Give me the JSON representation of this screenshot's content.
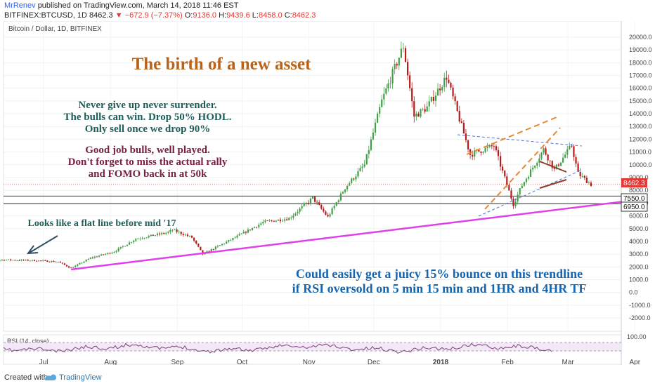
{
  "header": {
    "author": "MrRenev",
    "published": "published on TradingView.com, March 14, 2018 11:46 EST",
    "symbol": "BITFINEX:BTCUSD, 1D",
    "last": "8462.3",
    "change": "−672.9 (−7.37%)",
    "o_label": "O:",
    "o": "9136.0",
    "h_label": "H:",
    "h": "9439.6",
    "l_label": "L:",
    "l": "8458.0",
    "c_label": "C:",
    "c": "8462.3"
  },
  "chart_title": "Bitcoin / Dollar, 1D, BITFINEX",
  "annotations": {
    "headline": "The birth of a new asset",
    "hodl_1": "Never give up never surrender.",
    "hodl_2": "The bulls can win. Drop 50% HODL.",
    "hodl_3": "Only sell once we drop 90%",
    "bulls_1": "Good job bulls, well played.",
    "bulls_2": "Don't forget to miss the actual rally",
    "bulls_3": "and FOMO back in at 50k",
    "flat_line": "Looks like a flat line before mid '17",
    "bounce_1": "Could easily get a juicy 15% bounce on this trendline",
    "bounce_2": "if RSI oversold on 5 min 15 min and 1HR and 4HR TF"
  },
  "rsi_label": "RSI (14, close)",
  "price_badges": {
    "current": "8462.3",
    "level_upper": "7550.0",
    "level_lower": "6950.0"
  },
  "footer": {
    "created_with": "Created with",
    "brand": "TradingView"
  },
  "colors": {
    "headline": "#b8641c",
    "hodl_text": "#1f5f5a",
    "bulls_text": "#7a1f44",
    "flat_text": "#1f5f5a",
    "bounce_text": "#1565b0",
    "trendline": "#e040e8",
    "orange_channel": "#e08a3a",
    "blue_dashed": "#4f72d6",
    "wedge": "#8b3a2a",
    "candle_up": "#43a047",
    "candle_down": "#b71c1c",
    "rsi_line": "#7e3f7e",
    "price_badge": "#e53935"
  },
  "chart_data": {
    "type": "candlestick",
    "x_ticks": [
      "Jul",
      "Aug",
      "Sep",
      "Oct",
      "Nov",
      "Dec",
      "2018",
      "Feb",
      "Mar",
      "Apr"
    ],
    "y_ticks": [
      -2000,
      -1000,
      0,
      1000,
      2000,
      3000,
      4000,
      5000,
      6000,
      7000,
      8000,
      9000,
      10000,
      11000,
      12000,
      13000,
      14000,
      15000,
      16000,
      17000,
      18000,
      19000,
      20000
    ],
    "ylim": [
      -2600,
      20600
    ],
    "rsi_ticks": [
      100
    ],
    "series": [
      {
        "name": "BTCUSD",
        "close_approx": [
          [
            "2017-06-01",
            2450
          ],
          [
            "2017-06-15",
            2550
          ],
          [
            "2017-06-30",
            2500
          ],
          [
            "2017-07-10",
            2400
          ],
          [
            "2017-07-16",
            1900
          ],
          [
            "2017-07-25",
            2700
          ],
          [
            "2017-08-05",
            3200
          ],
          [
            "2017-08-15",
            4200
          ],
          [
            "2017-08-30",
            4700
          ],
          [
            "2017-09-01",
            4900
          ],
          [
            "2017-09-10",
            4300
          ],
          [
            "2017-09-15",
            3000
          ],
          [
            "2017-09-30",
            4300
          ],
          [
            "2017-10-13",
            5500
          ],
          [
            "2017-10-25",
            5800
          ],
          [
            "2017-11-05",
            7400
          ],
          [
            "2017-11-12",
            5900
          ],
          [
            "2017-11-20",
            8200
          ],
          [
            "2017-11-29",
            10000
          ],
          [
            "2017-12-07",
            15000
          ],
          [
            "2017-12-17",
            19300
          ],
          [
            "2017-12-22",
            13800
          ],
          [
            "2017-12-28",
            14500
          ],
          [
            "2018-01-06",
            16900
          ],
          [
            "2018-01-17",
            10800
          ],
          [
            "2018-01-28",
            11500
          ],
          [
            "2018-02-06",
            6900
          ],
          [
            "2018-02-10",
            8400
          ],
          [
            "2018-02-20",
            11200
          ],
          [
            "2018-02-25",
            9600
          ],
          [
            "2018-03-05",
            11500
          ],
          [
            "2018-03-08",
            9300
          ],
          [
            "2018-03-14",
            8460
          ]
        ]
      }
    ],
    "lines": [
      {
        "name": "pink-trendline",
        "from": [
          "2017-07-16",
          1800
        ],
        "to": [
          "2018-04-30",
          7100
        ]
      },
      {
        "name": "level-upper",
        "y": 7550
      },
      {
        "name": "level-lower",
        "y": 6950
      }
    ]
  }
}
